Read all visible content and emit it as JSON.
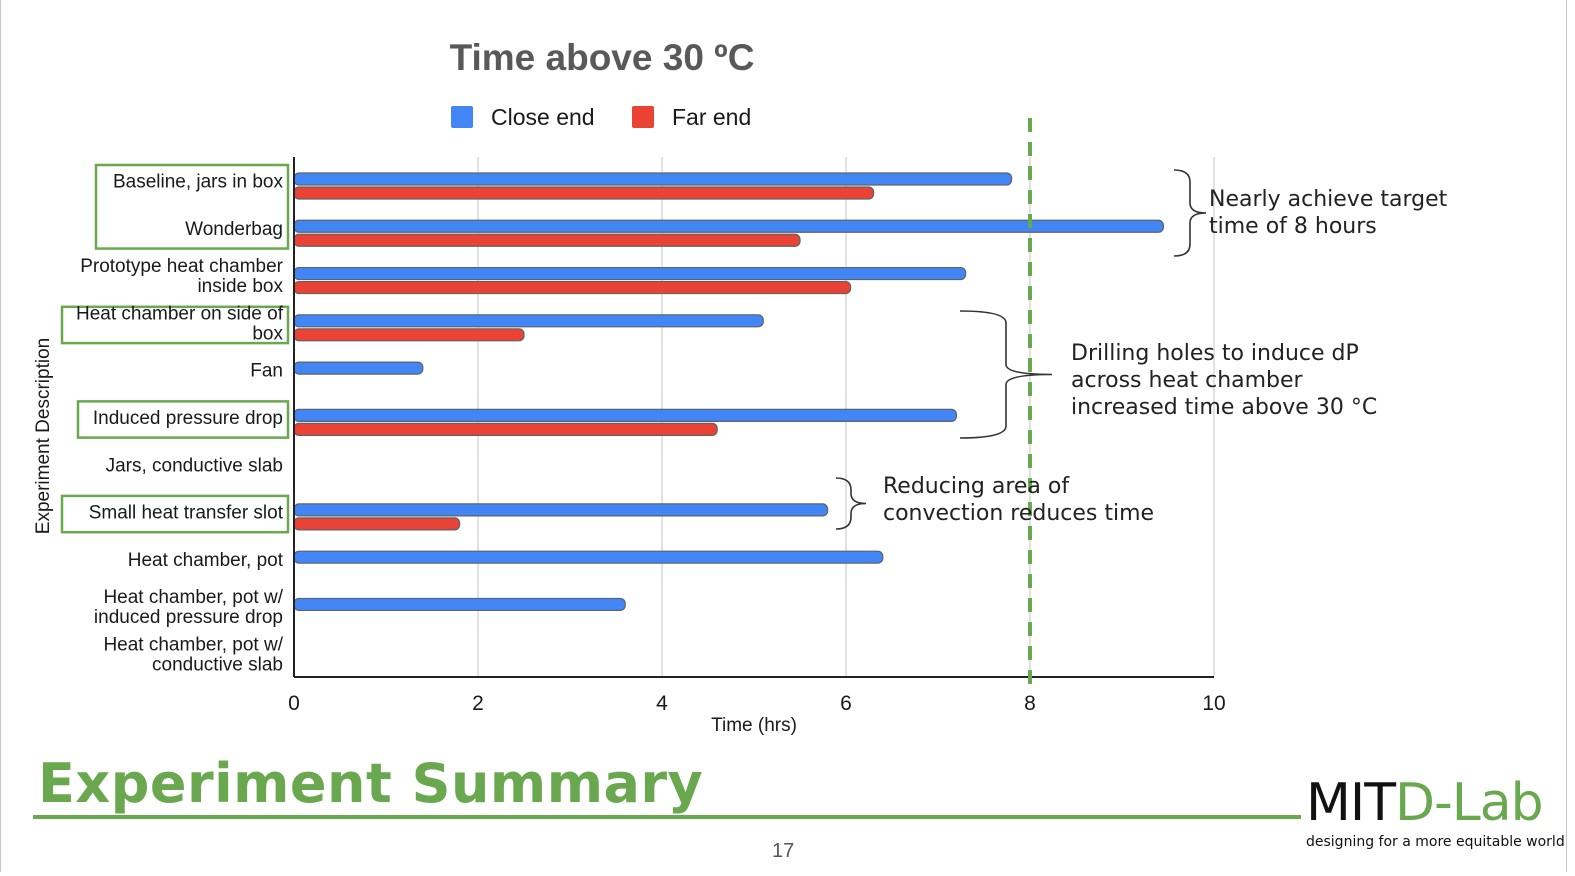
{
  "chart_data": {
    "type": "bar",
    "orientation": "horizontal",
    "title": "Time above 30 ºC",
    "xlabel": "Time (hrs)",
    "ylabel": "Experiment Description",
    "xlim": [
      0,
      10
    ],
    "xticks": [
      "0",
      "2",
      "4",
      "6",
      "8",
      "10"
    ],
    "grid": true,
    "legend_position": "top",
    "reference_line": {
      "x": 8,
      "color": "#6aa84f",
      "style": "dashed"
    },
    "categories": [
      "Baseline, jars in box",
      "Wonderbag",
      "Prototype heat chamber inside box",
      "Heat chamber on side of box",
      "Fan",
      "Induced pressure drop",
      "Jars, conductive slab",
      "Small heat transfer slot",
      "Heat chamber, pot",
      "Heat chamber, pot w/ induced pressure drop",
      "Heat chamber, pot w/ conductive slab"
    ],
    "series": [
      {
        "name": "Close end",
        "color": "#4285f4",
        "values": [
          7.8,
          9.45,
          7.3,
          5.1,
          1.4,
          7.2,
          null,
          5.8,
          6.4,
          3.6,
          null
        ]
      },
      {
        "name": "Far end",
        "color": "#ea4335",
        "values": [
          6.3,
          5.5,
          6.05,
          2.5,
          null,
          4.6,
          null,
          1.8,
          null,
          null,
          null
        ]
      }
    ],
    "highlighted_categories": [
      "Baseline, jars in box",
      "Wonderbag",
      "Heat chamber on side of box",
      "Induced pressure drop",
      "Small heat transfer slot"
    ],
    "annotations": [
      {
        "text": "Nearly achieve target time of 8 hours"
      },
      {
        "text": "Drilling holes to induce dP across heat chamber increased time above 30 °C"
      },
      {
        "text": "Reducing area of convection reduces time"
      }
    ]
  },
  "slide": {
    "title": "Experiment Summary",
    "page_number": "17",
    "logo_mit": "MIT",
    "logo_dlab": "D-Lab",
    "logo_tagline": "designing for a more equitable world",
    "accent_color": "#6aa84f"
  }
}
